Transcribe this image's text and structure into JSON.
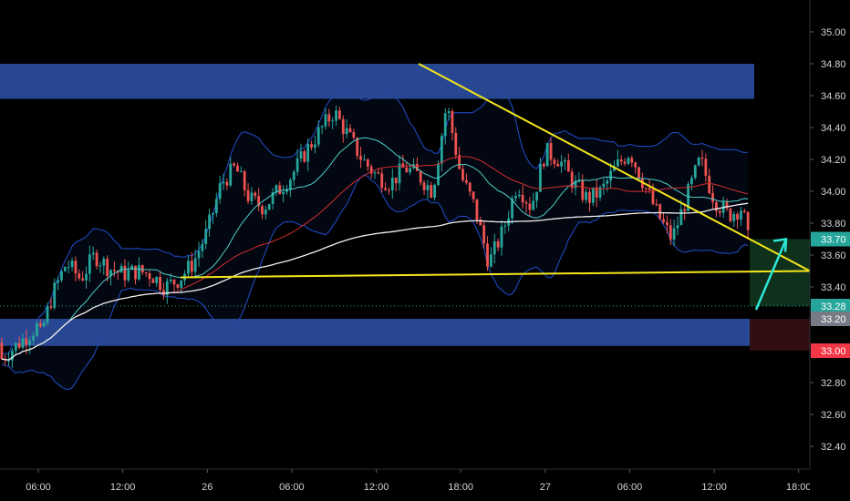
{
  "chart_data": {
    "type": "candlestick",
    "title": "",
    "xlabel": "",
    "ylabel": "",
    "ylim": [
      32.24,
      35.1
    ],
    "y_ticks": [
      "35.00",
      "34.80",
      "34.60",
      "34.40",
      "34.20",
      "34.00",
      "33.80",
      "33.60",
      "33.40",
      "32.80",
      "32.60",
      "32.40"
    ],
    "x_ticks": [
      "06:00",
      "12:00",
      "26",
      "06:00",
      "12:00",
      "18:00",
      "27",
      "06:00",
      "12:00",
      "18:00"
    ],
    "grid": false,
    "legend": "none",
    "price_tags": [
      {
        "label": "33.70",
        "value": 33.7,
        "color": "#26a69a"
      },
      {
        "label": "33.28",
        "value": 33.28,
        "color": "#26a69a"
      },
      {
        "label": "33.20",
        "value": 33.2,
        "color": "#787b86"
      },
      {
        "label": "33.00",
        "value": 33.0,
        "color": "#f23645"
      }
    ],
    "resistance_zone": [
      34.58,
      34.8
    ],
    "support_zone": [
      33.03,
      33.2
    ],
    "trend_lines": [
      {
        "name": "descending-resistance",
        "points": [
          [
            14.9,
            34.8
          ],
          [
            37.2,
            33.5
          ]
        ]
      },
      {
        "name": "horizontal-support",
        "points": [
          [
            7.8,
            33.46
          ],
          [
            37.2,
            33.5
          ]
        ]
      }
    ],
    "projection_arrow": [
      [
        34.4,
        33.28
      ],
      [
        35.6,
        33.7
      ]
    ],
    "colors": {
      "up": "#26a69a",
      "down": "#ef5350",
      "zone": "#2962ff",
      "trend": "#f5e61b",
      "arrow": "#2ee6d6"
    }
  }
}
